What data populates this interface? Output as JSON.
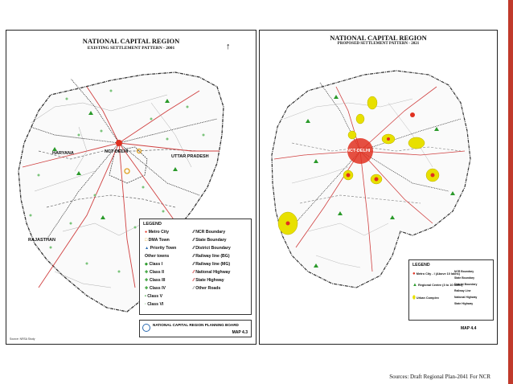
{
  "left_map": {
    "title": "NATIONAL CAPITAL REGION",
    "subtitle": "EXISTING SETTLEMENT PATTERN - 2001",
    "labels": {
      "haryana": "HARYANA",
      "ncr_delhi": "NCT DELHI",
      "uttar_pradesh": "UTTAR PRADESH",
      "rajasthan": "RAJASTHAN"
    },
    "legend": {
      "heading": "LEGEND",
      "left_items": [
        "Metro City",
        "DMA Town",
        "Priority Town",
        "Other towns",
        "Class I",
        "Class II",
        "Class III",
        "Class IV",
        "Class V",
        "Class VI"
      ],
      "right_items": [
        "NCR Boundary",
        "State Boundary",
        "District Boundary",
        "Railway line (BG)",
        "Railway line (MG)",
        "National Highway",
        "State Highway",
        "Other Roads"
      ]
    },
    "board": "NATIONAL CAPITAL REGION PLANNING BOARD",
    "map_no": "MAP 4.3",
    "source_note": "Source: NRSA Study"
  },
  "right_map": {
    "title": "NATIONAL CAPITAL REGION",
    "subtitle": "PROPOSED SETTLEMENT PATTERN - 2021",
    "labels": {
      "ncr_delhi": "NCT-DELHI"
    },
    "legend": {
      "heading": "LEGEND",
      "left_items": [
        "Metro City - I (Above 10 lakhs)",
        "Regional Centre (3 to 10 lakhs)",
        "Urban Complex"
      ],
      "right_items": [
        "NCR Boundary",
        "State Boundary",
        "District Boundary",
        "Railway Line",
        "National Highway",
        "State Highway"
      ]
    },
    "map_no": "MAP 4.4"
  },
  "source": "Sources: Draft Regional Plan-2041 For NCR",
  "colors": {
    "accent_bar": "#c0392b",
    "metro": "#e03020",
    "urban_complex": "#e8e000",
    "road_red": "#d04040",
    "rail": "#333333"
  }
}
